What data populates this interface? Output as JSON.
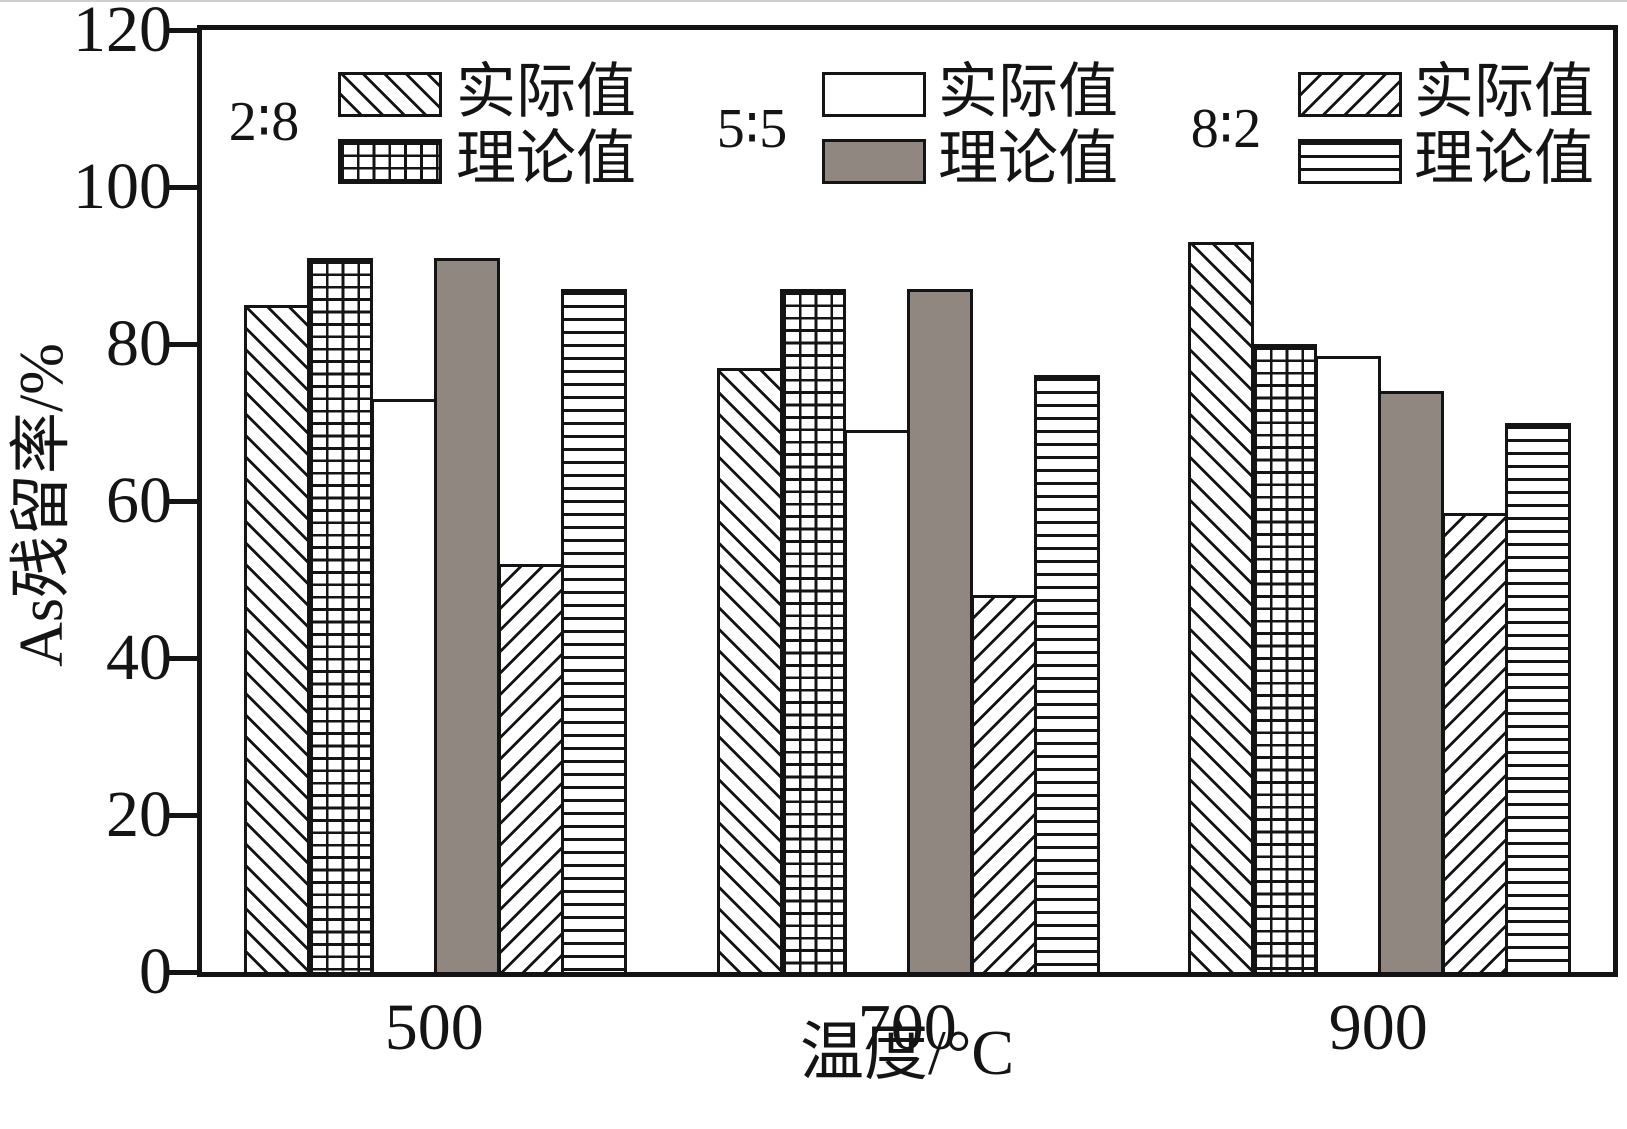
{
  "chart_data": {
    "type": "bar",
    "title": "",
    "xlabel": "温度/°C",
    "ylabel": "As残留率/%",
    "ylim": [
      0,
      120
    ],
    "yticks": [
      0,
      20,
      40,
      60,
      80,
      100,
      120
    ],
    "categories": [
      "500",
      "700",
      "900"
    ],
    "series": [
      {
        "group": "2∶8",
        "name": "实际值",
        "pattern": "backslash-hatch",
        "values": [
          85,
          77,
          93
        ]
      },
      {
        "group": "2∶8",
        "name": "理论值",
        "pattern": "grid-crosshatch",
        "values": [
          91,
          87,
          80
        ]
      },
      {
        "group": "5∶5",
        "name": "实际值",
        "pattern": "white-plain",
        "values": [
          73,
          69,
          78.5
        ]
      },
      {
        "group": "5∶5",
        "name": "理论值",
        "pattern": "solid-gray",
        "values": [
          91,
          87,
          74
        ]
      },
      {
        "group": "8∶2",
        "name": "实际值",
        "pattern": "slash-hatch",
        "values": [
          52,
          48,
          58.5
        ]
      },
      {
        "group": "8∶2",
        "name": "理论值",
        "pattern": "horizontal-lines",
        "values": [
          87,
          76,
          70
        ]
      }
    ],
    "legend_groups": [
      {
        "ratio": "2∶8",
        "entries": [
          {
            "label": "实际值",
            "pattern": "backslash-hatch"
          },
          {
            "label": "理论值",
            "pattern": "grid-crosshatch"
          }
        ]
      },
      {
        "ratio": "5∶5",
        "entries": [
          {
            "label": "实际值",
            "pattern": "white-plain"
          },
          {
            "label": "理论值",
            "pattern": "solid-gray"
          }
        ]
      },
      {
        "ratio": "8∶2",
        "entries": [
          {
            "label": "实际值",
            "pattern": "slash-hatch"
          },
          {
            "label": "理论值",
            "pattern": "horizontal-lines"
          }
        ]
      }
    ],
    "legend_position": "top-inside",
    "grid": false,
    "colors": {
      "solid_gray": "#8f8780",
      "outline": "#141414"
    }
  }
}
